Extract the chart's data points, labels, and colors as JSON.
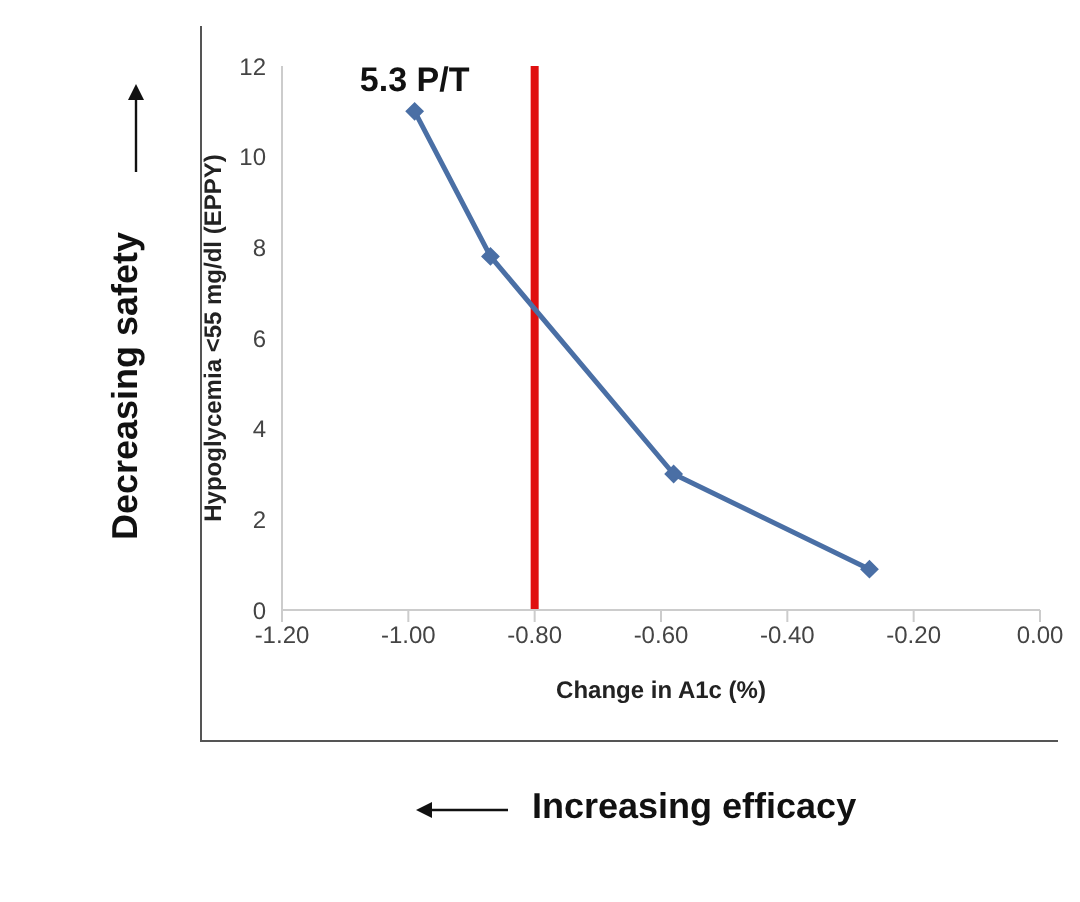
{
  "chart_data": {
    "type": "line",
    "xlabel": "Change in A1c (%)",
    "ylabel": "Hypoglycemia <55 mg/dl (EPPY)",
    "x": [
      -0.99,
      -0.87,
      -0.58,
      -0.27
    ],
    "series": [
      {
        "color": "#4a6fa5",
        "values": [
          11.0,
          7.8,
          3.0,
          0.9
        ]
      }
    ],
    "xlim": [
      -1.2,
      0
    ],
    "xticks": [
      {
        "value": -1.2,
        "label": "-1.20"
      },
      {
        "value": -1,
        "label": "-1.00"
      },
      {
        "value": -0.8,
        "label": "-0.80"
      },
      {
        "value": -0.6,
        "label": "-0.60"
      },
      {
        "value": -0.4,
        "label": "-0.40"
      },
      {
        "value": -0.2,
        "label": "-0.20"
      },
      {
        "value": 0,
        "label": "0.00"
      }
    ],
    "ylim": [
      0,
      12
    ],
    "yticks": [
      0,
      2,
      4,
      6,
      8,
      10,
      12
    ],
    "grid": false,
    "legend": false,
    "marker": "diamond",
    "line_style": "solid",
    "ref_lines": [
      {
        "axis": "x",
        "value": -0.8,
        "color": "#e01010"
      }
    ],
    "annotations": [
      {
        "text": "5.3 P/T",
        "x": -0.99,
        "y": 11.0
      },
      "Decreasing safety",
      "Increasing efficacy"
    ]
  }
}
